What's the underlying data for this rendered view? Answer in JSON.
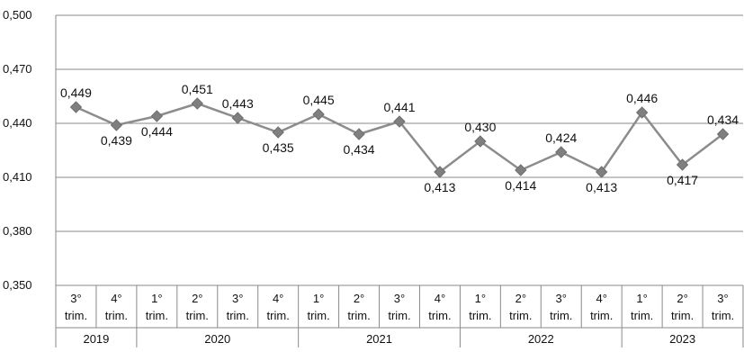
{
  "chart_data": {
    "type": "line",
    "title": "",
    "xlabel": "",
    "ylabel": "",
    "ylim": [
      0.35,
      0.5
    ],
    "yticks": [
      "0,350",
      "0,380",
      "0,410",
      "0,440",
      "0,470",
      "0,500"
    ],
    "ytick_values": [
      0.35,
      0.38,
      0.41,
      0.44,
      0.47,
      0.5
    ],
    "grid": true,
    "categories": [
      {
        "q": "3°",
        "t": "trim."
      },
      {
        "q": "4°",
        "t": "trim."
      },
      {
        "q": "1°",
        "t": "trim."
      },
      {
        "q": "2°",
        "t": "trim."
      },
      {
        "q": "3°",
        "t": "trim."
      },
      {
        "q": "4°",
        "t": "trim."
      },
      {
        "q": "1°",
        "t": "trim."
      },
      {
        "q": "2°",
        "t": "trim."
      },
      {
        "q": "3°",
        "t": "trim."
      },
      {
        "q": "4°",
        "t": "trim."
      },
      {
        "q": "1°",
        "t": "trim."
      },
      {
        "q": "2°",
        "t": "trim."
      },
      {
        "q": "3°",
        "t": "trim."
      },
      {
        "q": "4°",
        "t": "trim."
      },
      {
        "q": "1°",
        "t": "trim."
      },
      {
        "q": "2°",
        "t": "trim."
      },
      {
        "q": "3°",
        "t": "trim."
      }
    ],
    "years": [
      {
        "label": "2019",
        "span": 2
      },
      {
        "label": "2020",
        "span": 4
      },
      {
        "label": "2021",
        "span": 4
      },
      {
        "label": "2022",
        "span": 4
      },
      {
        "label": "2023",
        "span": 3
      }
    ],
    "series": [
      {
        "values": [
          0.449,
          0.439,
          0.444,
          0.451,
          0.443,
          0.435,
          0.445,
          0.434,
          0.441,
          0.413,
          0.43,
          0.414,
          0.424,
          0.413,
          0.446,
          0.417,
          0.434
        ],
        "labels": [
          "0,449",
          "0,439",
          "0,444",
          "0,451",
          "0,443",
          "0,435",
          "0,445",
          "0,434",
          "0,441",
          "0,413",
          "0,430",
          "0,414",
          "0,424",
          "0,413",
          "0,446",
          "0,417",
          "0,434"
        ],
        "label_positions": [
          "above",
          "below",
          "below",
          "above",
          "above",
          "below",
          "above",
          "below",
          "above",
          "below",
          "above",
          "below",
          "above",
          "below",
          "above",
          "below",
          "above"
        ],
        "color": "#8c8c8c",
        "marker_color": "#7f7f7f"
      }
    ]
  }
}
